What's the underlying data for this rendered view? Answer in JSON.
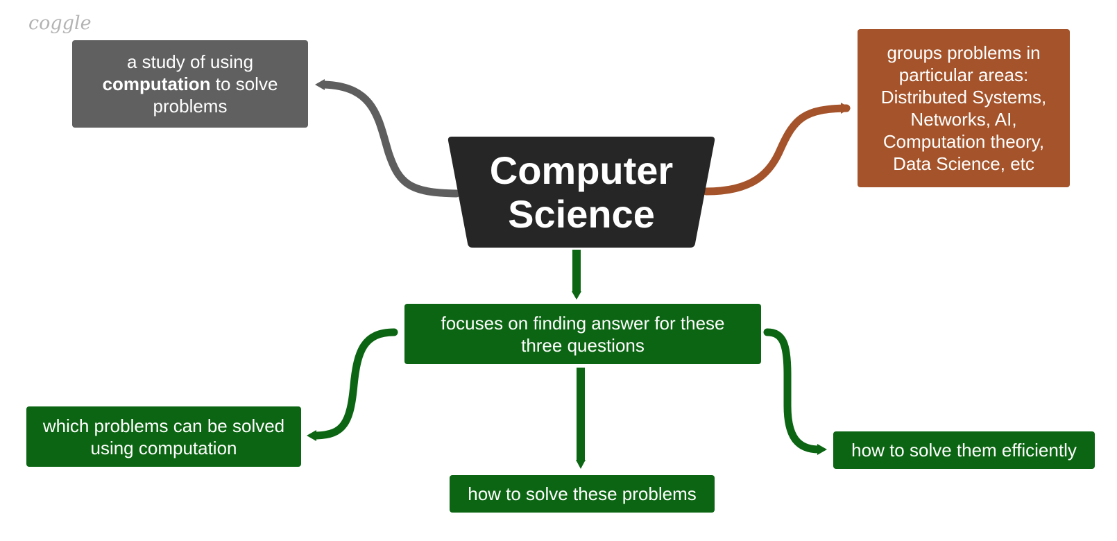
{
  "logo": "coggle",
  "root": {
    "line1": "Computer",
    "line2": "Science",
    "color": "#262626"
  },
  "definition": {
    "pre": "a study of using",
    "bold": "computation",
    "post": " to solve problems",
    "color": "#606060"
  },
  "areas": {
    "text": "groups problems in particular areas: Distributed Systems, Networks, AI, Computation theory, Data Science, etc",
    "color": "#a4532a"
  },
  "focus": {
    "text": "focuses on finding answer for these three questions",
    "color": "#0b6512"
  },
  "questions": [
    {
      "text": "which problems can be solved using computation"
    },
    {
      "text": "how to solve these problems"
    },
    {
      "text": "how to solve them efficiently"
    }
  ]
}
